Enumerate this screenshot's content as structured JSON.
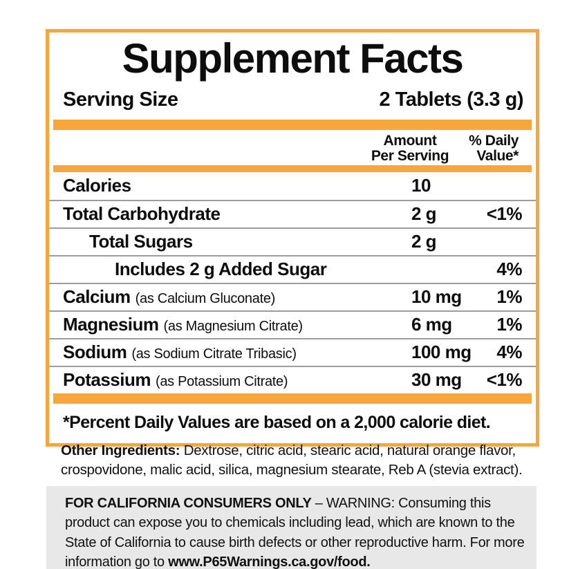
{
  "colors": {
    "accent_orange": "#F6A63C",
    "warning_background": "#E8E8E8",
    "row_separator_gray": "#9C9C9C"
  },
  "panel": {
    "title": "Supplement Facts",
    "serving_size_label": "Serving Size",
    "serving_size_value": "2 Tablets (3.3 g)",
    "column_headers": {
      "amount": "Amount\nPer Serving",
      "daily_value": "% Daily\nValue*"
    },
    "rows": [
      {
        "name": "Calories",
        "amount": "10",
        "daily_value": ""
      },
      {
        "name": "Total Carbohydrate",
        "amount": "2 g",
        "daily_value": "<1%"
      },
      {
        "name": "Total Sugars",
        "amount": "2 g",
        "daily_value": ""
      },
      {
        "name": "Includes 2 g Added Sugar",
        "amount": "",
        "daily_value": "4%"
      },
      {
        "name": "Calcium",
        "detail": "(as Calcium Gluconate)",
        "amount": "10 mg",
        "daily_value": "1%"
      },
      {
        "name": "Magnesium",
        "detail": "(as Magnesium Citrate)",
        "amount": "6 mg",
        "daily_value": "1%"
      },
      {
        "name": "Sodium",
        "detail": "(as Sodium Citrate Tribasic)",
        "amount": "100 mg",
        "daily_value": "4%"
      },
      {
        "name": "Potassium",
        "detail": "(as Potassium Citrate)",
        "amount": "30 mg",
        "daily_value": "<1%"
      }
    ],
    "footnote": "*Percent Daily Values are based on a 2,000 calorie diet."
  },
  "other_ingredients": {
    "label": "Other Ingredients:",
    "text": " Dextrose, citric acid, stearic acid, natural orange flavor, crospovidone, malic acid, silica, magnesium stearate, Reb A (stevia extract)."
  },
  "california_warning": {
    "bold_label": "FOR CALIFORNIA CONSUMERS ONLY",
    "text": " – WARNING: Consuming this product can expose you to chemicals including lead, which are known to the State of California to cause birth defects or other reproductive harm. For more information go to ",
    "link": "www.P65Warnings.ca.gov/food."
  }
}
